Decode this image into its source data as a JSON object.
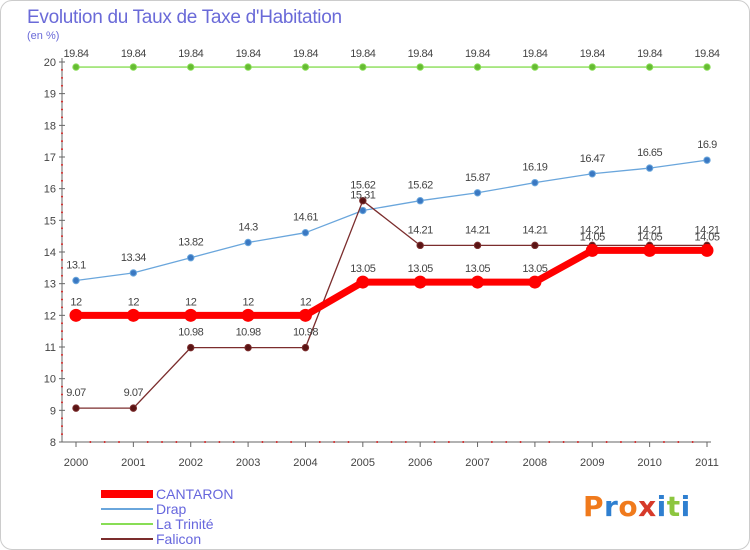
{
  "title": "Evolution du Taux de Taxe d'Habitation",
  "subtitle": "(en %)",
  "brand": {
    "letters": [
      "P",
      "r",
      "o",
      "x",
      "i",
      "t",
      "i"
    ],
    "colors": [
      "#f07a1c",
      "#2f7fd0",
      "#f07a1c",
      "#d63a2a",
      "#2f7fd0",
      "#8cc63f",
      "#2f7fd0"
    ]
  },
  "chart_data": {
    "type": "line",
    "x": [
      "2000",
      "2001",
      "2002",
      "2003",
      "2004",
      "2005",
      "2006",
      "2007",
      "2008",
      "2009",
      "2010",
      "2011"
    ],
    "yticks": [
      "8",
      "9",
      "10",
      "11",
      "12",
      "13",
      "14",
      "15",
      "16",
      "17",
      "18",
      "19",
      "20"
    ],
    "ylim": [
      8,
      20
    ],
    "grid": false,
    "legend_position": "bottom-left",
    "series": [
      {
        "name": "CANTARON",
        "color": "#ff0000",
        "values": [
          12,
          12,
          12,
          12,
          12,
          13.05,
          13.05,
          13.05,
          13.05,
          14.05,
          14.05,
          14.05
        ],
        "labels": [
          "12",
          "12",
          "12",
          "12",
          "12",
          "13.05",
          "13.05",
          "13.05",
          "13.05",
          "14.05",
          "14.05",
          "14.05"
        ]
      },
      {
        "name": "Drap",
        "color": "#6aa6dc",
        "marker": "#3a78c2",
        "values": [
          13.1,
          13.34,
          13.82,
          14.3,
          14.61,
          15.31,
          15.62,
          15.87,
          16.19,
          16.47,
          16.65,
          16.9
        ],
        "labels": [
          "13.1",
          "13.34",
          "13.82",
          "14.3",
          "14.61",
          "15.31",
          "15.62",
          "15.87",
          "16.19",
          "16.47",
          "16.65",
          "16.9"
        ]
      },
      {
        "name": "La Trinité",
        "color": "#88dd55",
        "marker": "#66bb33",
        "values": [
          19.84,
          19.84,
          19.84,
          19.84,
          19.84,
          19.84,
          19.84,
          19.84,
          19.84,
          19.84,
          19.84,
          19.84
        ],
        "labels": [
          "19.84",
          "19.84",
          "19.84",
          "19.84",
          "19.84",
          "19.84",
          "19.84",
          "19.84",
          "19.84",
          "19.84",
          "19.84",
          "19.84"
        ]
      },
      {
        "name": "Falicon",
        "color": "#7b2d2d",
        "marker": "#5a1414",
        "values": [
          9.07,
          9.07,
          10.98,
          10.98,
          10.98,
          15.62,
          14.21,
          14.21,
          14.21,
          14.21,
          14.21,
          14.21
        ],
        "labels": [
          "9.07",
          "9.07",
          "10.98",
          "10.98",
          "10.98",
          "15.62",
          "14.21",
          "14.21",
          "14.21",
          "14.21",
          "14.21",
          "14.21"
        ]
      }
    ]
  }
}
